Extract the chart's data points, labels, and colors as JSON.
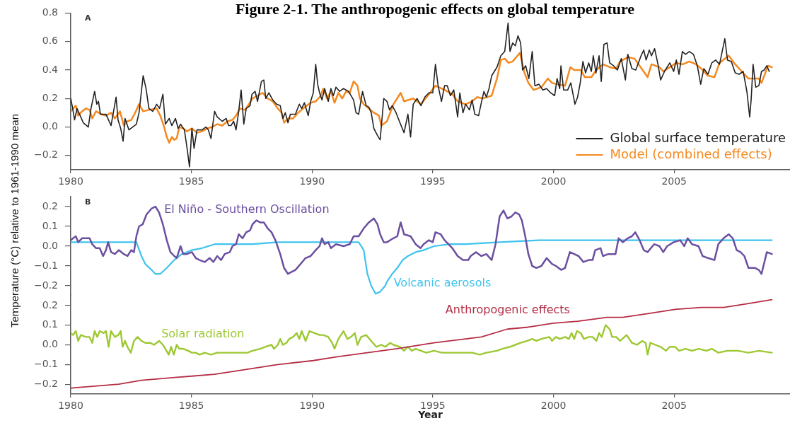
{
  "chart_data": [
    {
      "type": "line",
      "title": "Figure 2-1. The anthropogenic effects on global temperature",
      "annotations": [
        "A"
      ],
      "xlim": [
        1980,
        2009.8
      ],
      "xticks": [
        1980,
        1985,
        1990,
        1995,
        2000,
        2005
      ],
      "ylim": [
        -0.3,
        0.8
      ],
      "yticks": [
        {
          "value": -0.2,
          "label": "−0.2"
        },
        {
          "value": 0,
          "label": "0.0"
        },
        0.2,
        0.4,
        0.6,
        0.8
      ],
      "legend": "bottom right",
      "series": [
        {
          "name": "Global surface temperature",
          "color": "#222222",
          "x": [
            1980.0,
            1980.07,
            1980.16,
            1980.26,
            1980.52,
            1980.73,
            1980.84,
            1980.99,
            1981.08,
            1981.15,
            1981.23,
            1981.46,
            1981.67,
            1981.88,
            1981.96,
            1982.07,
            1982.17,
            1982.25,
            1982.41,
            1982.72,
            1982.83,
            1983.0,
            1983.12,
            1983.24,
            1983.4,
            1983.56,
            1983.68,
            1983.82,
            1983.92,
            1984.08,
            1984.19,
            1984.34,
            1984.45,
            1984.55,
            1984.71,
            1984.83,
            1984.92,
            1985.02,
            1985.11,
            1985.23,
            1985.44,
            1985.6,
            1985.7,
            1985.81,
            1985.96,
            1986.07,
            1986.28,
            1986.44,
            1986.54,
            1986.64,
            1986.75,
            1986.85,
            1986.96,
            1987.06,
            1987.17,
            1987.27,
            1987.43,
            1987.51,
            1987.64,
            1987.74,
            1987.9,
            1988.0,
            1988.08,
            1988.21,
            1988.37,
            1988.53,
            1988.68,
            1988.79,
            1988.89,
            1989.0,
            1989.1,
            1989.31,
            1989.47,
            1989.57,
            1989.68,
            1989.84,
            1989.94,
            1990.05,
            1990.15,
            1990.23,
            1990.31,
            1990.41,
            1990.52,
            1990.67,
            1990.78,
            1990.88,
            1990.99,
            1991.14,
            1991.3,
            1991.51,
            1991.72,
            1991.82,
            1991.93,
            1992.09,
            1992.24,
            1992.35,
            1992.45,
            1992.56,
            1992.71,
            1992.82,
            1992.97,
            1993.1,
            1993.21,
            1993.32,
            1993.48,
            1993.64,
            1993.81,
            1993.97,
            1994.08,
            1994.19,
            1994.35,
            1994.51,
            1994.67,
            1994.84,
            1995.0,
            1995.11,
            1995.22,
            1995.36,
            1995.49,
            1995.6,
            1995.73,
            1995.87,
            1996.03,
            1996.12,
            1996.25,
            1996.36,
            1996.52,
            1996.63,
            1996.74,
            1996.9,
            1997.01,
            1997.12,
            1997.22,
            1997.33,
            1997.44,
            1997.66,
            1997.82,
            1997.98,
            1998.12,
            1998.2,
            1998.31,
            1998.42,
            1998.53,
            1998.64,
            1998.72,
            1998.85,
            1998.98,
            1999.12,
            1999.23,
            1999.4,
            1999.56,
            1999.72,
            1999.88,
            2000.05,
            2000.15,
            2000.26,
            2000.31,
            2000.42,
            2000.59,
            2000.72,
            2000.89,
            2001.0,
            2001.11,
            2001.22,
            2001.33,
            2001.46,
            2001.57,
            2001.65,
            2001.76,
            2001.89,
            2001.98,
            2002.09,
            2002.22,
            2002.33,
            2002.49,
            2002.65,
            2002.81,
            2002.98,
            2003.08,
            2003.25,
            2003.41,
            2003.63,
            2003.74,
            2003.84,
            2003.97,
            2004.06,
            2004.19,
            2004.33,
            2004.44,
            2004.6,
            2004.82,
            2004.98,
            2005.09,
            2005.2,
            2005.34,
            2005.47,
            2005.63,
            2005.8,
            2005.96,
            2006.1,
            2006.23,
            2006.4,
            2006.56,
            2006.72,
            2006.88,
            2006.99,
            2007.1,
            2007.21,
            2007.37,
            2007.53,
            2007.69,
            2007.86,
            2007.97,
            2008.02,
            2008.13,
            2008.19,
            2008.27,
            2008.38,
            2008.51,
            2008.62,
            2008.73,
            2008.84,
            2008.94
          ],
          "values": [
            0.2,
            0.14,
            0.05,
            0.13,
            0.03,
            0.0,
            0.13,
            0.25,
            0.16,
            0.18,
            0.09,
            0.09,
            0.01,
            0.21,
            0.05,
            -0.01,
            -0.1,
            0.06,
            -0.02,
            0.02,
            0.1,
            0.36,
            0.27,
            0.13,
            0.11,
            0.16,
            0.13,
            0.23,
            0.02,
            0.06,
            0.01,
            0.06,
            -0.01,
            0.02,
            -0.02,
            -0.16,
            -0.28,
            -0.01,
            -0.15,
            -0.02,
            -0.02,
            0.0,
            -0.02,
            -0.08,
            0.11,
            0.07,
            0.04,
            0.06,
            0.01,
            0.01,
            0.04,
            -0.02,
            0.11,
            0.26,
            0.02,
            0.13,
            0.15,
            0.23,
            0.25,
            0.18,
            0.32,
            0.33,
            0.2,
            0.24,
            0.19,
            0.16,
            0.15,
            0.06,
            0.1,
            0.03,
            0.09,
            0.09,
            0.16,
            0.13,
            0.17,
            0.08,
            0.18,
            0.24,
            0.44,
            0.3,
            0.24,
            0.19,
            0.27,
            0.18,
            0.27,
            0.22,
            0.28,
            0.25,
            0.27,
            0.25,
            0.19,
            0.1,
            0.09,
            0.25,
            0.15,
            0.14,
            0.1,
            -0.01,
            -0.06,
            -0.09,
            0.2,
            0.18,
            0.12,
            0.15,
            0.1,
            0.03,
            -0.04,
            0.09,
            -0.07,
            0.16,
            0.2,
            0.15,
            0.21,
            0.24,
            0.24,
            0.44,
            0.29,
            0.18,
            0.29,
            0.29,
            0.22,
            0.26,
            0.07,
            0.24,
            0.1,
            0.16,
            0.12,
            0.19,
            0.09,
            0.08,
            0.17,
            0.25,
            0.21,
            0.27,
            0.36,
            0.42,
            0.5,
            0.53,
            0.73,
            0.53,
            0.59,
            0.57,
            0.64,
            0.59,
            0.4,
            0.43,
            0.34,
            0.53,
            0.29,
            0.3,
            0.26,
            0.27,
            0.24,
            0.22,
            0.34,
            0.27,
            0.43,
            0.26,
            0.26,
            0.31,
            0.16,
            0.21,
            0.31,
            0.46,
            0.38,
            0.45,
            0.39,
            0.5,
            0.38,
            0.5,
            0.32,
            0.58,
            0.59,
            0.45,
            0.43,
            0.4,
            0.48,
            0.33,
            0.51,
            0.41,
            0.4,
            0.5,
            0.54,
            0.47,
            0.54,
            0.5,
            0.55,
            0.44,
            0.33,
            0.39,
            0.45,
            0.39,
            0.47,
            0.37,
            0.53,
            0.51,
            0.53,
            0.51,
            0.43,
            0.3,
            0.41,
            0.37,
            0.45,
            0.47,
            0.44,
            0.53,
            0.62,
            0.47,
            0.46,
            0.38,
            0.37,
            0.39,
            0.29,
            0.24,
            0.07,
            0.19,
            0.44,
            0.28,
            0.29,
            0.39,
            0.4,
            0.43,
            0.39
          ]
        },
        {
          "name": "Model (combined effects)",
          "color": "#f5891f",
          "x": [
            1980.0,
            1980.1,
            1980.21,
            1980.31,
            1980.47,
            1980.63,
            1980.78,
            1980.89,
            1981.05,
            1981.26,
            1981.46,
            1981.67,
            1981.83,
            1982.04,
            1982.2,
            1982.35,
            1982.51,
            1982.67,
            1982.83,
            1983.0,
            1983.24,
            1983.56,
            1983.71,
            1983.87,
            1983.98,
            1984.08,
            1984.19,
            1984.29,
            1984.39,
            1984.5,
            1984.66,
            1984.81,
            1985.02,
            1985.23,
            1985.44,
            1985.65,
            1985.86,
            1986.07,
            1986.28,
            1986.49,
            1986.7,
            1986.85,
            1987.01,
            1987.22,
            1987.38,
            1987.53,
            1987.74,
            1987.95,
            1988.16,
            1988.37,
            1988.58,
            1988.74,
            1988.84,
            1989.0,
            1989.21,
            1989.42,
            1989.63,
            1989.78,
            1989.94,
            1990.15,
            1990.36,
            1990.46,
            1990.62,
            1990.78,
            1990.93,
            1991.09,
            1991.25,
            1991.41,
            1991.56,
            1991.72,
            1991.88,
            1991.98,
            1992.14,
            1992.35,
            1992.56,
            1992.77,
            1992.87,
            1993.1,
            1993.37,
            1993.67,
            1993.81,
            1994.19,
            1994.51,
            1994.84,
            1995.11,
            1995.49,
            1995.81,
            1996.03,
            1996.36,
            1996.63,
            1996.84,
            1997.06,
            1997.44,
            1997.66,
            1997.82,
            1997.98,
            1998.14,
            1998.31,
            1998.61,
            1998.8,
            1998.96,
            1999.18,
            1999.5,
            1999.77,
            1999.94,
            2000.15,
            2000.48,
            2000.7,
            2000.86,
            2001.13,
            2001.3,
            2001.57,
            2001.78,
            2002.05,
            2002.33,
            2002.6,
            2002.76,
            2003.08,
            2003.36,
            2003.57,
            2003.9,
            2004.06,
            2004.39,
            2004.55,
            2004.82,
            2005.09,
            2005.36,
            2005.63,
            2005.91,
            2006.12,
            2006.4,
            2006.67,
            2006.88,
            2007.26,
            2007.53,
            2007.8,
            2008.08,
            2008.51,
            2008.62,
            2008.89,
            2009.05
          ],
          "values": [
            0.11,
            0.13,
            0.15,
            0.08,
            0.11,
            0.13,
            0.12,
            0.06,
            0.11,
            0.09,
            0.08,
            0.1,
            0.06,
            0.11,
            0.01,
            0.04,
            0.05,
            0.1,
            0.16,
            0.11,
            0.12,
            0.13,
            0.08,
            0.0,
            -0.07,
            -0.11,
            -0.07,
            -0.09,
            -0.08,
            0.0,
            -0.01,
            -0.03,
            -0.01,
            -0.04,
            -0.03,
            -0.01,
            0.0,
            0.02,
            0.01,
            0.04,
            0.05,
            0.08,
            0.13,
            0.12,
            0.16,
            0.2,
            0.22,
            0.24,
            0.2,
            0.18,
            0.13,
            0.1,
            0.03,
            0.06,
            0.06,
            0.1,
            0.13,
            0.15,
            0.17,
            0.18,
            0.22,
            0.27,
            0.2,
            0.25,
            0.17,
            0.24,
            0.2,
            0.25,
            0.24,
            0.32,
            0.29,
            0.2,
            0.16,
            0.13,
            0.1,
            0.08,
            0.01,
            0.04,
            0.16,
            0.24,
            0.18,
            0.2,
            0.16,
            0.23,
            0.29,
            0.26,
            0.23,
            0.18,
            0.16,
            0.18,
            0.21,
            0.2,
            0.22,
            0.34,
            0.47,
            0.48,
            0.45,
            0.46,
            0.52,
            0.38,
            0.31,
            0.26,
            0.28,
            0.34,
            0.31,
            0.3,
            0.29,
            0.42,
            0.4,
            0.4,
            0.35,
            0.35,
            0.4,
            0.44,
            0.42,
            0.41,
            0.46,
            0.49,
            0.48,
            0.43,
            0.35,
            0.44,
            0.42,
            0.39,
            0.42,
            0.45,
            0.44,
            0.46,
            0.44,
            0.41,
            0.36,
            0.35,
            0.45,
            0.5,
            0.44,
            0.39,
            0.34,
            0.34,
            0.31,
            0.43,
            0.42
          ]
        }
      ]
    },
    {
      "type": "line",
      "annotations": [
        "B"
      ],
      "ylabel": "Temperature (°C) relative to 1961-1990 mean",
      "xlim": [
        1980,
        2009.8
      ],
      "ylim": [
        -0.25,
        0.25
      ],
      "yticks": [
        {
          "value": -0.2,
          "label": "−0.2"
        },
        {
          "value": -0.1,
          "label": "−0.1"
        },
        {
          "value": 0,
          "label": "0.0"
        },
        0.1,
        0.2
      ],
      "tick_labels": "y",
      "series": [
        {
          "name": "El Niño - Southern Oscillation",
          "color": "#6b4fa0",
          "x": [
            1980.0,
            1980.1,
            1980.21,
            1980.31,
            1980.47,
            1980.63,
            1980.78,
            1980.89,
            1981.05,
            1981.2,
            1981.34,
            1981.46,
            1981.55,
            1981.67,
            1981.83,
            1981.99,
            1982.2,
            1982.35,
            1982.51,
            1982.62,
            1982.72,
            1982.83,
            1982.98,
            1983.14,
            1983.35,
            1983.51,
            1983.66,
            1983.82,
            1983.98,
            1984.13,
            1984.29,
            1984.39,
            1984.55,
            1984.66,
            1984.81,
            1985.02,
            1985.18,
            1985.34,
            1985.55,
            1985.76,
            1985.91,
            1986.07,
            1986.23,
            1986.38,
            1986.59,
            1986.7,
            1986.85,
            1986.96,
            1987.12,
            1987.27,
            1987.43,
            1987.53,
            1987.69,
            1987.85,
            1988.0,
            1988.16,
            1988.32,
            1988.48,
            1988.68,
            1988.84,
            1989.0,
            1989.15,
            1989.31,
            1989.52,
            1989.73,
            1989.94,
            1990.15,
            1990.31,
            1990.41,
            1990.52,
            1990.67,
            1990.78,
            1990.99,
            1991.3,
            1991.56,
            1991.72,
            1991.93,
            1992.14,
            1992.35,
            1992.56,
            1992.71,
            1992.82,
            1992.97,
            1993.1,
            1993.37,
            1993.53,
            1993.67,
            1993.81,
            1994.08,
            1994.29,
            1994.49,
            1994.62,
            1994.84,
            1995.0,
            1995.11,
            1995.33,
            1995.49,
            1995.65,
            1995.81,
            1996.03,
            1996.25,
            1996.47,
            1996.57,
            1996.79,
            1997.01,
            1997.22,
            1997.44,
            1997.6,
            1997.77,
            1997.93,
            1998.09,
            1998.26,
            1998.42,
            1998.58,
            1998.69,
            1998.83,
            1998.96,
            1999.12,
            1999.29,
            1999.5,
            1999.72,
            1999.94,
            2000.1,
            2000.32,
            2000.48,
            2000.68,
            2000.86,
            2001.04,
            2001.24,
            2001.46,
            2001.62,
            2001.73,
            2001.95,
            2002.05,
            2002.27,
            2002.43,
            2002.57,
            2002.7,
            2002.87,
            2003.08,
            2003.25,
            2003.39,
            2003.57,
            2003.74,
            2003.9,
            2004.17,
            2004.39,
            2004.55,
            2004.71,
            2004.98,
            2005.25,
            2005.42,
            2005.56,
            2005.74,
            2006.01,
            2006.18,
            2006.4,
            2006.67,
            2006.83,
            2007.05,
            2007.26,
            2007.43,
            2007.59,
            2007.75,
            2007.91,
            2008.08,
            2008.35,
            2008.51,
            2008.62,
            2008.84,
            2009.05
          ],
          "values": [
            0.03,
            0.04,
            0.05,
            0.02,
            0.04,
            0.04,
            0.04,
            0.01,
            -0.01,
            -0.01,
            -0.05,
            -0.02,
            0.02,
            -0.03,
            -0.04,
            -0.02,
            -0.04,
            -0.05,
            -0.02,
            -0.03,
            0.05,
            0.1,
            0.11,
            0.16,
            0.19,
            0.2,
            0.17,
            0.11,
            0.03,
            -0.03,
            -0.05,
            -0.06,
            0.0,
            -0.04,
            -0.04,
            -0.03,
            -0.06,
            -0.07,
            -0.08,
            -0.06,
            -0.08,
            -0.05,
            -0.07,
            -0.04,
            -0.03,
            0.0,
            0.01,
            0.06,
            0.04,
            0.07,
            0.08,
            0.11,
            0.13,
            0.12,
            0.12,
            0.09,
            0.07,
            0.03,
            -0.04,
            -0.11,
            -0.14,
            -0.13,
            -0.12,
            -0.09,
            -0.06,
            -0.05,
            -0.02,
            0.0,
            0.04,
            0.01,
            0.02,
            -0.01,
            0.01,
            0.0,
            0.01,
            0.05,
            0.05,
            0.09,
            0.12,
            0.14,
            0.11,
            0.06,
            0.02,
            0.02,
            0.04,
            0.05,
            0.12,
            0.06,
            0.05,
            0.01,
            -0.01,
            0.01,
            0.03,
            0.02,
            0.07,
            0.06,
            0.03,
            0.01,
            -0.01,
            -0.05,
            -0.07,
            -0.07,
            -0.05,
            -0.03,
            -0.05,
            -0.04,
            -0.07,
            0.01,
            0.15,
            0.18,
            0.14,
            0.15,
            0.17,
            0.16,
            0.13,
            0.05,
            -0.04,
            -0.1,
            -0.11,
            -0.1,
            -0.06,
            -0.09,
            -0.1,
            -0.12,
            -0.11,
            -0.03,
            -0.04,
            -0.05,
            -0.08,
            -0.07,
            -0.07,
            -0.02,
            -0.01,
            -0.05,
            -0.04,
            -0.04,
            -0.04,
            0.04,
            0.02,
            0.04,
            0.05,
            0.07,
            0.03,
            -0.02,
            -0.03,
            0.01,
            0.0,
            -0.03,
            0.0,
            0.02,
            0.03,
            0.0,
            0.04,
            0.01,
            0.0,
            -0.05,
            -0.06,
            -0.07,
            0.01,
            0.04,
            0.06,
            0.04,
            -0.02,
            -0.03,
            -0.05,
            -0.11,
            -0.11,
            -0.12,
            -0.14,
            -0.03,
            -0.04
          ]
        },
        {
          "name": "Volcanic aerosols",
          "color": "#3fc3ee",
          "x": [
            1980.0,
            1981.05,
            1982.72,
            1982.93,
            1983.09,
            1983.35,
            1983.51,
            1983.71,
            1983.98,
            1984.29,
            1984.6,
            1985.02,
            1985.44,
            1985.96,
            1986.28,
            1986.7,
            1987.53,
            1988.58,
            1989.63,
            1990.67,
            1991.93,
            1992.14,
            1992.29,
            1992.45,
            1992.63,
            1992.82,
            1993.03,
            1993.1,
            1993.32,
            1993.53,
            1993.75,
            1993.97,
            1994.29,
            1994.62,
            1995.05,
            1995.71,
            1996.36,
            1997.77,
            1999.4,
            2001.57,
            2004.82,
            2009.05
          ],
          "values": [
            0.02,
            0.02,
            0.02,
            -0.05,
            -0.09,
            -0.12,
            -0.14,
            -0.14,
            -0.11,
            -0.07,
            -0.04,
            -0.02,
            -0.01,
            0.01,
            0.01,
            0.01,
            0.01,
            0.02,
            0.02,
            0.02,
            0.02,
            -0.02,
            -0.14,
            -0.2,
            -0.24,
            -0.23,
            -0.2,
            -0.18,
            -0.14,
            -0.11,
            -0.07,
            -0.05,
            -0.03,
            -0.02,
            0.0,
            0.01,
            0.01,
            0.02,
            0.03,
            0.03,
            0.03,
            0.03
          ]
        }
      ]
    },
    {
      "type": "line",
      "xlabel": "Year",
      "xlim": [
        1980,
        2009.8
      ],
      "xticks": [
        1980,
        1985,
        1990,
        1995,
        2000,
        2005
      ],
      "ylim": [
        -0.25,
        0.25
      ],
      "yticks": [
        {
          "value": -0.2,
          "label": "−0.2"
        },
        {
          "value": -0.1,
          "label": "−0.1"
        },
        {
          "value": 0,
          "label": "0.0"
        },
        0.1,
        0.2
      ],
      "series": [
        {
          "name": "Anthropogenic effects",
          "color": "#b52d45",
          "x": [
            1980.0,
            1981.99,
            1982.93,
            1984.92,
            1985.96,
            1987.01,
            1988.58,
            1990.05,
            1991.09,
            1993.48,
            1995.05,
            1997.01,
            1998.09,
            1998.96,
            2000.0,
            2001.02,
            2002.22,
            2002.87,
            2003.96,
            2005.04,
            2006.12,
            2007.05,
            2008.08,
            2009.05
          ],
          "values": [
            -0.22,
            -0.2,
            -0.18,
            -0.16,
            -0.15,
            -0.13,
            -0.1,
            -0.08,
            -0.06,
            -0.02,
            0.01,
            0.04,
            0.08,
            0.09,
            0.11,
            0.12,
            0.14,
            0.14,
            0.16,
            0.18,
            0.19,
            0.19,
            0.21,
            0.23
          ]
        },
        {
          "name": "Solar radiation",
          "color": "#9dc832",
          "x": [
            1980.0,
            1980.1,
            1980.21,
            1980.31,
            1980.42,
            1980.63,
            1980.78,
            1980.89,
            1980.99,
            1981.1,
            1981.2,
            1981.36,
            1981.46,
            1981.57,
            1981.67,
            1981.83,
            1981.97,
            1982.07,
            1982.15,
            1982.25,
            1982.35,
            1982.49,
            1982.62,
            1982.77,
            1982.93,
            1983.09,
            1983.3,
            1983.45,
            1983.66,
            1983.82,
            1983.92,
            1984.06,
            1984.16,
            1984.27,
            1984.39,
            1984.5,
            1984.66,
            1984.87,
            1985.02,
            1985.18,
            1985.34,
            1985.55,
            1985.81,
            1986.07,
            1986.49,
            1986.91,
            1987.32,
            1987.53,
            1987.85,
            1988.06,
            1988.32,
            1988.42,
            1988.58,
            1988.68,
            1988.79,
            1988.94,
            1989.05,
            1989.21,
            1989.36,
            1989.47,
            1989.57,
            1989.73,
            1989.89,
            1990.1,
            1990.31,
            1990.46,
            1990.67,
            1990.83,
            1990.93,
            1991.09,
            1991.3,
            1991.46,
            1991.61,
            1991.77,
            1991.88,
            1992.03,
            1992.24,
            1992.45,
            1992.66,
            1992.87,
            1993.03,
            1993.24,
            1993.37,
            1993.64,
            1993.81,
            1993.97,
            1994.13,
            1994.29,
            1994.51,
            1994.73,
            1995.05,
            1995.38,
            1995.81,
            1996.25,
            1996.63,
            1996.95,
            1997.22,
            1997.66,
            1997.88,
            1998.2,
            1998.42,
            1998.64,
            1998.91,
            1999.12,
            1999.29,
            1999.5,
            1999.83,
            1999.94,
            2000.1,
            2000.26,
            2000.48,
            2000.64,
            2000.75,
            2000.86,
            2000.97,
            2001.13,
            2001.26,
            2001.46,
            2001.62,
            2001.78,
            2001.89,
            2002.0,
            2002.16,
            2002.33,
            2002.43,
            2002.6,
            2002.76,
            2003.03,
            2003.25,
            2003.46,
            2003.68,
            2003.82,
            2003.9,
            2004.01,
            2004.22,
            2004.44,
            2004.66,
            2004.82,
            2005.04,
            2005.2,
            2005.47,
            2005.74,
            2006.01,
            2006.34,
            2006.56,
            2006.83,
            2007.21,
            2007.64,
            2008.08,
            2008.51,
            2009.05
          ],
          "values": [
            0.06,
            0.05,
            0.07,
            0.02,
            0.05,
            0.04,
            0.04,
            0.01,
            0.07,
            0.04,
            0.07,
            0.06,
            0.07,
            -0.01,
            0.07,
            0.04,
            0.05,
            0.07,
            -0.01,
            0.02,
            -0.01,
            -0.04,
            0.02,
            0.04,
            0.02,
            0.01,
            0.01,
            0.0,
            0.02,
            0.0,
            -0.02,
            -0.05,
            -0.01,
            -0.05,
            0.0,
            -0.02,
            -0.02,
            -0.03,
            -0.04,
            -0.04,
            -0.05,
            -0.04,
            -0.05,
            -0.04,
            -0.04,
            -0.04,
            -0.04,
            -0.03,
            -0.02,
            -0.01,
            0.0,
            -0.02,
            0.0,
            0.03,
            0.0,
            0.01,
            0.03,
            0.04,
            0.06,
            0.03,
            0.07,
            0.02,
            0.07,
            0.06,
            0.05,
            0.05,
            0.04,
            0.01,
            -0.02,
            0.03,
            0.07,
            0.03,
            0.04,
            0.06,
            0.0,
            0.04,
            0.05,
            0.02,
            -0.01,
            0.0,
            -0.01,
            0.01,
            0.0,
            -0.01,
            -0.03,
            -0.01,
            -0.03,
            -0.02,
            -0.03,
            -0.04,
            -0.03,
            -0.04,
            -0.04,
            -0.04,
            -0.04,
            -0.05,
            -0.04,
            -0.03,
            -0.02,
            -0.01,
            0.0,
            0.01,
            0.02,
            0.03,
            0.02,
            0.03,
            0.04,
            0.02,
            0.04,
            0.03,
            0.04,
            0.03,
            0.06,
            0.03,
            0.07,
            0.06,
            0.03,
            0.04,
            0.04,
            0.02,
            0.06,
            0.04,
            0.1,
            0.08,
            0.04,
            0.04,
            0.02,
            0.05,
            0.01,
            0.0,
            0.02,
            0.01,
            -0.05,
            0.01,
            0.0,
            -0.01,
            -0.03,
            -0.01,
            -0.01,
            -0.03,
            -0.02,
            -0.03,
            -0.02,
            -0.03,
            -0.02,
            -0.04,
            -0.03,
            -0.03,
            -0.04,
            -0.03,
            -0.04
          ]
        }
      ]
    }
  ]
}
